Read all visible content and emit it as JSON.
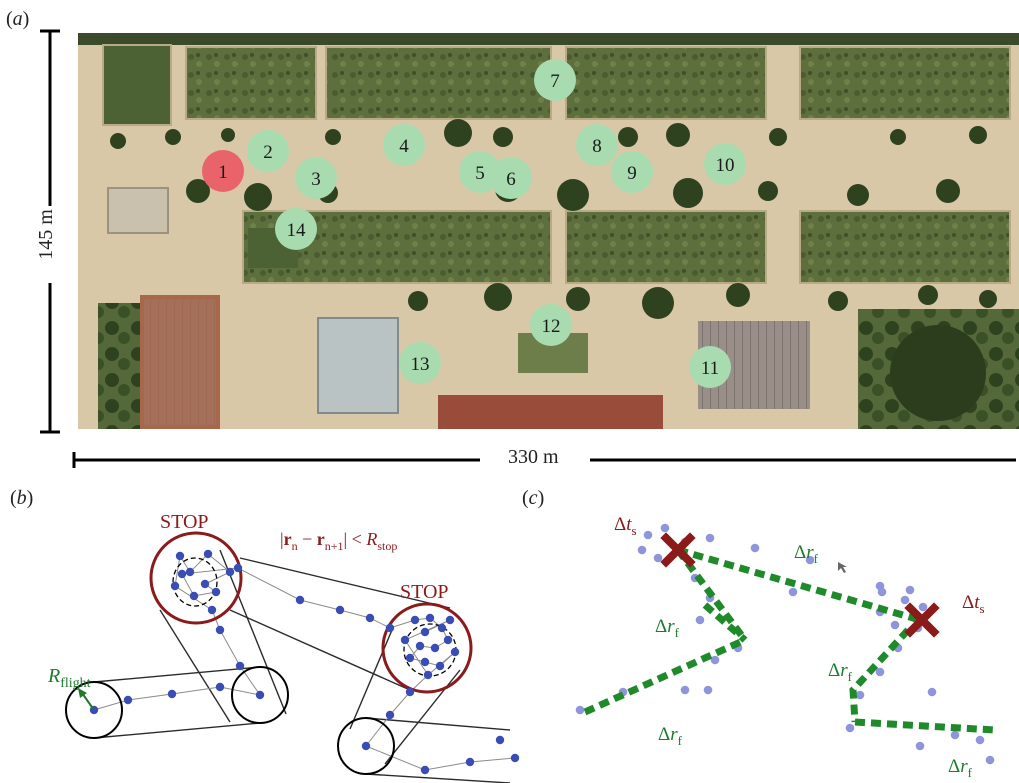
{
  "panels": {
    "a": {
      "label_open": "(",
      "letter": "a",
      "label_close": ")"
    },
    "b": {
      "label_open": "(",
      "letter": "b",
      "label_close": ")"
    },
    "c": {
      "label_open": "(",
      "letter": "c",
      "label_close": ")"
    }
  },
  "scale": {
    "height_label": "145 m",
    "width_label": "330 m"
  },
  "map": {
    "stations": [
      {
        "id": "1",
        "color": "#e8646a"
      },
      {
        "id": "2",
        "color": "#a8dcb0"
      },
      {
        "id": "3",
        "color": "#a8dcb0"
      },
      {
        "id": "4",
        "color": "#a8dcb0"
      },
      {
        "id": "5",
        "color": "#a8dcb0"
      },
      {
        "id": "6",
        "color": "#a8dcb0"
      },
      {
        "id": "7",
        "color": "#a8dcb0"
      },
      {
        "id": "8",
        "color": "#a8dcb0"
      },
      {
        "id": "9",
        "color": "#a8dcb0"
      },
      {
        "id": "10",
        "color": "#a8dcb0"
      },
      {
        "id": "11",
        "color": "#a8dcb0"
      },
      {
        "id": "12",
        "color": "#a8dcb0"
      },
      {
        "id": "13",
        "color": "#a8dcb0"
      },
      {
        "id": "14",
        "color": "#a8dcb0"
      }
    ]
  },
  "diagram_b": {
    "stop_label_1": "STOP",
    "stop_label_2": "STOP",
    "condition_parts": {
      "r_n": "r",
      "sub_n": "n",
      "minus": " − ",
      "r_n1": "r",
      "sub_n1": "n+1",
      "lt": " < ",
      "R": "R",
      "sub_stop": "stop"
    },
    "flight_label": {
      "R": "R",
      "sub": "flight"
    },
    "colors": {
      "stop": "#8b1a1a",
      "flight": "#1e7b2e",
      "point": "#3a4db5"
    }
  },
  "diagram_c": {
    "dt_label": {
      "delta": "Δ",
      "t": "t",
      "sub": "s"
    },
    "dr_label": {
      "delta": "Δ",
      "r": "r",
      "sub": "f"
    },
    "colors": {
      "cross": "#8b1a1a",
      "path": "#1e8a2a",
      "point": "#8f95dd",
      "text_green": "#1e7b2e",
      "text_red": "#8b1a1a"
    }
  }
}
